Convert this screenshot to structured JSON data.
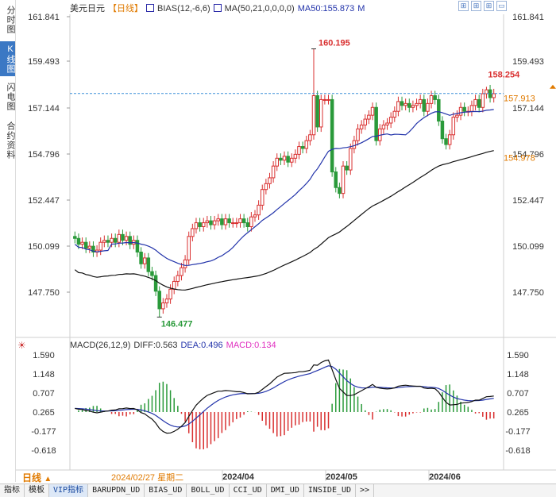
{
  "sidebar": {
    "tabs": [
      {
        "label": "分时图",
        "active": false
      },
      {
        "label": "K线图",
        "active": true
      },
      {
        "label": "闪电图",
        "active": false
      },
      {
        "label": "合约资料",
        "active": false
      }
    ]
  },
  "header": {
    "symbol": "美元日元",
    "period": "【日线】",
    "bias": "BIAS(12,-6,6)",
    "ma": "MA(50,21,0,0,0,0)",
    "ma50": "MA50:155.873",
    "extra": "M"
  },
  "toolbar_icons": [
    "⊞",
    "⊞",
    "⊞",
    "▭"
  ],
  "price_axis": {
    "labels": [
      "161.841",
      "159.493",
      "157.144",
      "154.796",
      "152.447",
      "150.099",
      "147.750"
    ]
  },
  "markers": {
    "high": "160.195",
    "low": "146.477",
    "recent_high": "158.254",
    "last_price": "157.913",
    "ma_value": "154.978"
  },
  "macd": {
    "title": "MACD(26,12,9)",
    "diff": "DIFF:0.563",
    "dea": "DEA:0.496",
    "macd": "MACD:0.134",
    "axis_labels": [
      "1.590",
      "1.148",
      "0.707",
      "0.265",
      "-0.177",
      "-0.618"
    ]
  },
  "x_axis": {
    "labels": [
      "2024/04",
      "2024/05",
      "2024/06"
    ]
  },
  "footer": {
    "period": "日线",
    "date": "2024/02/27 星期二"
  },
  "bottom_tabs": [
    "指标",
    "模板",
    "VIP指标",
    "BARUPDN_UD",
    "BIAS_UD",
    "BOLL_UD",
    "CCI_UD",
    "DMI_UD",
    "INSIDE_UD",
    ">>"
  ],
  "colors": {
    "up": "#d93030",
    "down": "#2a9a3a",
    "ma_black": "#111111",
    "ma_blue": "#2233aa",
    "macd_pink": "#e030c0",
    "accent": "#e07a00"
  },
  "chart_data": {
    "type": "candlestick",
    "y_range": [
      146.3,
      162.0
    ],
    "closes": [
      150.5,
      150.2,
      150.3,
      150.0,
      150.1,
      149.8,
      149.9,
      150.3,
      150.4,
      150.3,
      150.5,
      150.3,
      150.7,
      150.4,
      150.6,
      150.2,
      150.4,
      149.8,
      149.2,
      149.5,
      148.8,
      148.6,
      147.8,
      146.9,
      147.2,
      147.4,
      147.9,
      148.3,
      148.6,
      149.0,
      149.4,
      150.6,
      151.0,
      151.3,
      151.1,
      151.3,
      151.4,
      151.2,
      151.4,
      151.5,
      151.2,
      151.5,
      151.3,
      151.3,
      151.3,
      151.5,
      151.3,
      151.1,
      151.6,
      151.7,
      152.2,
      153.0,
      153.3,
      153.6,
      154.2,
      154.6,
      154.5,
      154.7,
      154.4,
      154.6,
      154.8,
      155.2,
      155.1,
      155.5,
      155.8,
      157.8,
      156.2,
      157.6,
      157.6,
      157.6,
      153.9,
      153.1,
      152.8,
      154.2,
      154.0,
      155.1,
      155.5,
      156.1,
      156.3,
      156.6,
      156.8,
      157.2,
      155.5,
      156.1,
      156.3,
      156.4,
      156.7,
      157.0,
      157.5,
      157.3,
      157.4,
      157.2,
      157.3,
      157.4,
      157.6,
      157.0,
      157.4,
      157.8,
      157.6,
      156.5,
      155.6,
      155.3,
      155.8,
      156.7,
      156.8,
      157.2,
      157.0,
      157.0,
      157.3,
      157.6,
      157.2,
      157.9,
      158.1,
      157.7,
      157.9
    ],
    "x_labels": [
      "2024/04",
      "2024/05",
      "2024/06"
    ],
    "macd_range": [
      -0.9,
      1.7
    ]
  }
}
